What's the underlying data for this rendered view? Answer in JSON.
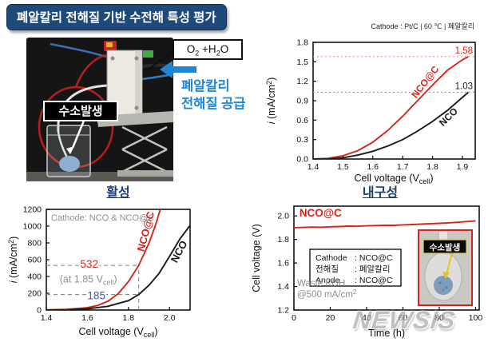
{
  "banner": {
    "title": "폐알칼리 전해질 기반 수전해 특성 평가"
  },
  "photo": {
    "hydrogen_label": "수소발생",
    "gas_parts": {
      "p1": "O",
      "s1": "2",
      "p2": " +H",
      "s2": "2",
      "p3": "O"
    },
    "supply_line1": "폐알칼리",
    "supply_line2": "전해질 공급"
  },
  "watermark": "NEWSIS",
  "chart_data": [
    {
      "id": "chart-ptc",
      "type": "line",
      "header": "Cathode : Pt/C   |   60 ℃   |   폐알칼리",
      "xlabel_parts": [
        {
          "t": "Cell voltage (V"
        },
        {
          "t": "cell",
          "sub": true
        },
        {
          "t": ")"
        }
      ],
      "ylabel_parts": [
        {
          "t": "i",
          "italic": true
        },
        {
          "t": " (mA/cm"
        },
        {
          "t": "2",
          "sup": true
        },
        {
          "t": ")"
        }
      ],
      "xlim": [
        1.4,
        1.943
      ],
      "ylim": [
        0,
        1.8
      ],
      "xticks": [
        "1.4",
        "1.5",
        "1.6",
        "1.7",
        "1.8",
        "1.9"
      ],
      "yticks": [
        "0.0",
        "0.3",
        "0.6",
        "0.9",
        "1.2",
        "1.5",
        "1.8"
      ],
      "series": [
        {
          "name": "NCO@C",
          "color": "#d7241b",
          "x": [
            1.4,
            1.45,
            1.5,
            1.55,
            1.6,
            1.65,
            1.7,
            1.75,
            1.8,
            1.85,
            1.9,
            1.92
          ],
          "y": [
            0.0,
            0.01,
            0.05,
            0.13,
            0.26,
            0.44,
            0.66,
            0.9,
            1.14,
            1.37,
            1.53,
            1.58
          ],
          "label_pos": [
            1.745,
            0.93
          ],
          "label_rot": -52,
          "label_size": 12
        },
        {
          "name": "NCO",
          "color": "#1a1a1a",
          "x": [
            1.4,
            1.45,
            1.5,
            1.55,
            1.6,
            1.65,
            1.7,
            1.75,
            1.8,
            1.85,
            1.9,
            1.92
          ],
          "y": [
            0.0,
            0.0,
            0.02,
            0.06,
            0.12,
            0.2,
            0.3,
            0.43,
            0.58,
            0.75,
            0.95,
            1.03
          ],
          "label_pos": [
            1.835,
            0.5
          ],
          "label_rot": -44,
          "label_size": 12
        }
      ],
      "guides": [
        {
          "y": 1.58,
          "color": "#ea9c96",
          "dash": "2 3",
          "label": "1.58",
          "label_color": "#d7241b"
        },
        {
          "y": 1.03,
          "color": "#9a9a9a",
          "dash": "2 3",
          "label": "1.03",
          "label_color": "#222222"
        }
      ]
    },
    {
      "id": "chart-activity",
      "type": "line",
      "title": "활성",
      "inner_label": "Cathode: NCO & NCO@C",
      "xlabel_parts": [
        {
          "t": "Cell voltage (V"
        },
        {
          "t": "cell",
          "sub": true
        },
        {
          "t": ")"
        }
      ],
      "ylabel_parts": [
        {
          "t": "i",
          "italic": true
        },
        {
          "t": " (mA/cm"
        },
        {
          "t": "2",
          "sup": true
        },
        {
          "t": ")"
        }
      ],
      "xlim": [
        1.4,
        2.1
      ],
      "ylim": [
        0,
        1200
      ],
      "xticks": [
        "1.4",
        "1.6",
        "1.8",
        "2.0"
      ],
      "yticks": [
        "0",
        "200",
        "400",
        "600",
        "800",
        "1000",
        "1200"
      ],
      "series": [
        {
          "name": "NCO@C",
          "color": "#d7241b",
          "x": [
            1.4,
            1.5,
            1.6,
            1.65,
            1.7,
            1.75,
            1.8,
            1.85,
            1.9,
            1.93,
            1.955
          ],
          "y": [
            2,
            8,
            28,
            55,
            105,
            195,
            340,
            532,
            800,
            1000,
            1200
          ],
          "label_pos": [
            1.875,
            690
          ],
          "label_rot": -75,
          "label_size": 13
        },
        {
          "name": "NCO",
          "color": "#1a1a1a",
          "x": [
            1.4,
            1.5,
            1.6,
            1.7,
            1.8,
            1.85,
            1.9,
            1.95,
            2.0,
            2.05,
            2.1
          ],
          "y": [
            1,
            4,
            14,
            45,
            112,
            185,
            295,
            440,
            640,
            845,
            1010
          ],
          "label_pos": [
            2.035,
            555
          ],
          "label_rot": -62,
          "label_size": 13
        }
      ],
      "guides": [
        {
          "y": 532,
          "x_to": 1.85,
          "color": "#8a8a8a",
          "dash": "5 4"
        },
        {
          "y": 185,
          "x_to": 1.85,
          "color": "#8a8a8a",
          "dash": "5 4"
        },
        {
          "x": 1.85,
          "y_to": 532,
          "color": "#8a8a8a",
          "dash": "5 4"
        }
      ],
      "annotations": [
        {
          "text": "532",
          "pos": [
            1.565,
            505
          ],
          "color": "#d7241b",
          "size": 13.5,
          "halo": true
        },
        {
          "parts": [
            {
              "t": "(at 1.85 V"
            },
            {
              "t": "cell",
              "sub": true
            },
            {
              "t": ")"
            }
          ],
          "pos": [
            1.465,
            330
          ],
          "color": "#8f8f8f",
          "size": 12.5
        },
        {
          "text": "185",
          "pos": [
            1.6,
            130
          ],
          "color": "#3b55b2",
          "size": 13.5,
          "halo": true
        }
      ]
    },
    {
      "id": "chart-durability",
      "type": "line",
      "title": "내구성",
      "xlabel_parts": [
        {
          "t": "Time (h)"
        }
      ],
      "ylabel_parts": [
        {
          "t": "Cell voltage (V)"
        }
      ],
      "xlim": [
        0,
        102
      ],
      "ylim": [
        1.2,
        2.083
      ],
      "xticks": [
        "0",
        "20",
        "40",
        "60",
        "80",
        "100"
      ],
      "yticks": [
        "1.2",
        "1.4",
        "1.6",
        "1.8",
        "2.0"
      ],
      "series": [
        {
          "name": "NCO@C",
          "color": "#d7241b",
          "x": [
            0,
            5,
            10,
            15,
            20,
            25,
            30,
            35,
            40,
            45,
            50,
            55,
            60,
            65,
            70,
            75,
            80,
            85,
            90,
            95,
            100
          ],
          "y": [
            1.9,
            1.902,
            1.905,
            1.904,
            1.908,
            1.91,
            1.913,
            1.912,
            1.916,
            1.918,
            1.921,
            1.92,
            1.924,
            1.927,
            1.93,
            1.934,
            1.937,
            1.941,
            1.946,
            1.952,
            1.958
          ],
          "label_pos": [
            3,
            1.995
          ],
          "label_rot": 0,
          "label_size": 13.5
        }
      ],
      "legend_rows": [
        [
          "Cathode",
          ": NCO@C"
        ],
        [
          "전해질",
          ": 폐알칼리"
        ],
        [
          "Anode",
          ": NCO@C"
        ]
      ],
      "note1": "Waste KOH",
      "note2_parts": [
        {
          "t": "@500 mA/cm"
        },
        {
          "t": "2",
          "sup": true
        }
      ],
      "inset_label": "수소발생"
    }
  ]
}
